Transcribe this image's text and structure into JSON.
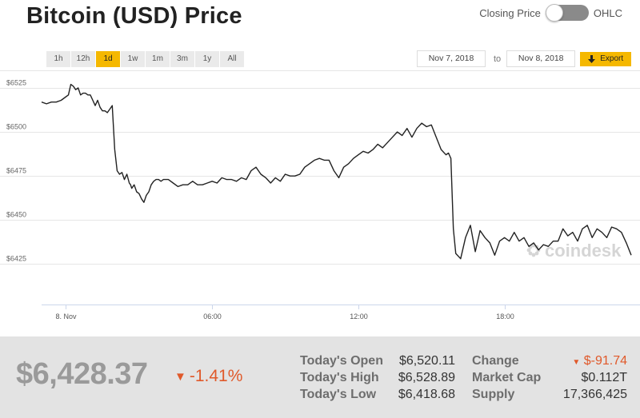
{
  "header": {
    "title": "Bitcoin (USD) Price",
    "toggle_left_label": "Closing Price",
    "toggle_right_label": "OHLC"
  },
  "ranges": [
    {
      "label": "1h",
      "active": false
    },
    {
      "label": "12h",
      "active": false
    },
    {
      "label": "1d",
      "active": true
    },
    {
      "label": "1w",
      "active": false
    },
    {
      "label": "1m",
      "active": false
    },
    {
      "label": "3m",
      "active": false
    },
    {
      "label": "1y",
      "active": false
    },
    {
      "label": "All",
      "active": false
    }
  ],
  "date_range": {
    "from": "Nov 7, 2018",
    "to_label": "to",
    "to": "Nov 8, 2018",
    "export_label": "Export"
  },
  "colors": {
    "accent": "#f5b800",
    "negative": "#e0592a",
    "line": "#222222",
    "grid": "#e6e6e6"
  },
  "chart_data": {
    "type": "line",
    "watermark": "coindesk",
    "x_tick_labels": [
      "8. Nov",
      "06:00",
      "12:00",
      "18:00"
    ],
    "x_ticks_hours": [
      0,
      6,
      12,
      18
    ],
    "xlim_hours": [
      -1.0,
      23.3
    ],
    "y_tick_labels": [
      "$6525",
      "$6500",
      "$6475",
      "$6450",
      "$6425"
    ],
    "y_ticks": [
      6525,
      6500,
      6475,
      6450,
      6425
    ],
    "ylim": [
      6402,
      6535
    ],
    "grid": true,
    "series": [
      {
        "x": [
          -1.0,
          -0.8,
          -0.6,
          -0.4,
          -0.2,
          0.0,
          0.1,
          0.2,
          0.3,
          0.4,
          0.5,
          0.6,
          0.7,
          0.8,
          0.9,
          1.0,
          1.1,
          1.2,
          1.3,
          1.4,
          1.5,
          1.6,
          1.7,
          1.8,
          1.9,
          2.0,
          2.1,
          2.2,
          2.3,
          2.4,
          2.5,
          2.6,
          2.65,
          2.7,
          2.8,
          2.9,
          3.0,
          3.1,
          3.2,
          3.3,
          3.4,
          3.5,
          3.6,
          3.7,
          3.8,
          3.9,
          4.0,
          4.2,
          4.4,
          4.6,
          4.8,
          5.0,
          5.2,
          5.4,
          5.6,
          5.8,
          6.0,
          6.2,
          6.4,
          6.6,
          6.8,
          7.0,
          7.2,
          7.4,
          7.6,
          7.8,
          8.0,
          8.2,
          8.4,
          8.6,
          8.8,
          9.0,
          9.2,
          9.4,
          9.6,
          9.8,
          10.0,
          10.2,
          10.4,
          10.6,
          10.8,
          11.0,
          11.2,
          11.4,
          11.6,
          11.8,
          12.0,
          12.2,
          12.4,
          12.6,
          12.8,
          13.0,
          13.2,
          13.4,
          13.6,
          13.8,
          14.0,
          14.2,
          14.4,
          14.6,
          14.8,
          15.0,
          15.2,
          15.4,
          15.6,
          15.7,
          15.8,
          15.9,
          16.0,
          16.2,
          16.4,
          16.6,
          16.8,
          17.0,
          17.2,
          17.4,
          17.6,
          17.8,
          18.0,
          18.2,
          18.4,
          18.6,
          18.8,
          19.0,
          19.2,
          19.4,
          19.6,
          19.8,
          20.0,
          20.2,
          20.4,
          20.6,
          20.8,
          21.0,
          21.2,
          21.4,
          21.6,
          21.8,
          22.0,
          22.2,
          22.4,
          22.6,
          22.8,
          23.0,
          23.2
        ],
        "y": [
          6517,
          6516,
          6517,
          6517,
          6518,
          6520,
          6521,
          6527,
          6526,
          6524,
          6525,
          6521,
          6522,
          6522,
          6521,
          6521,
          6518,
          6515,
          6518,
          6514,
          6512,
          6512,
          6511,
          6513,
          6515,
          6490,
          6478,
          6476,
          6477,
          6473,
          6476,
          6471,
          6470,
          6468,
          6470,
          6466,
          6465,
          6462,
          6460,
          6464,
          6466,
          6470,
          6472,
          6473,
          6473,
          6472,
          6473,
          6473,
          6471,
          6469,
          6470,
          6470,
          6472,
          6470,
          6470,
          6471,
          6472,
          6471,
          6474,
          6473,
          6473,
          6472,
          6474,
          6473,
          6478,
          6480,
          6476,
          6474,
          6471,
          6474,
          6472,
          6476,
          6475,
          6475,
          6476,
          6480,
          6482,
          6484,
          6485,
          6484,
          6484,
          6478,
          6474,
          6480,
          6482,
          6485,
          6487,
          6489,
          6488,
          6490,
          6493,
          6491,
          6494,
          6497,
          6500,
          6498,
          6502,
          6497,
          6502,
          6505,
          6503,
          6504,
          6497,
          6490,
          6487,
          6488,
          6485,
          6445,
          6431,
          6428,
          6440,
          6447,
          6432,
          6444,
          6440,
          6437,
          6430,
          6438,
          6440,
          6438,
          6443,
          6438,
          6440,
          6435,
          6437,
          6433,
          6436,
          6435,
          6438,
          6438,
          6445,
          6441,
          6443,
          6438,
          6445,
          6447,
          6440,
          6445,
          6443,
          6440,
          6446,
          6445,
          6443,
          6437,
          6430
        ]
      }
    ]
  },
  "summary": {
    "price": "$6,428.37",
    "change_pct": "-1.41%",
    "change_arrow": "▼",
    "todays_open_label": "Today's Open",
    "todays_open": "$6,520.11",
    "todays_high_label": "Today's High",
    "todays_high": "$6,528.89",
    "todays_low_label": "Today's Low",
    "todays_low": "$6,418.68",
    "change_label": "Change",
    "change_value": "$-91.74",
    "market_cap_label": "Market Cap",
    "market_cap": "$0.112T",
    "supply_label": "Supply",
    "supply": "17,366,425"
  }
}
